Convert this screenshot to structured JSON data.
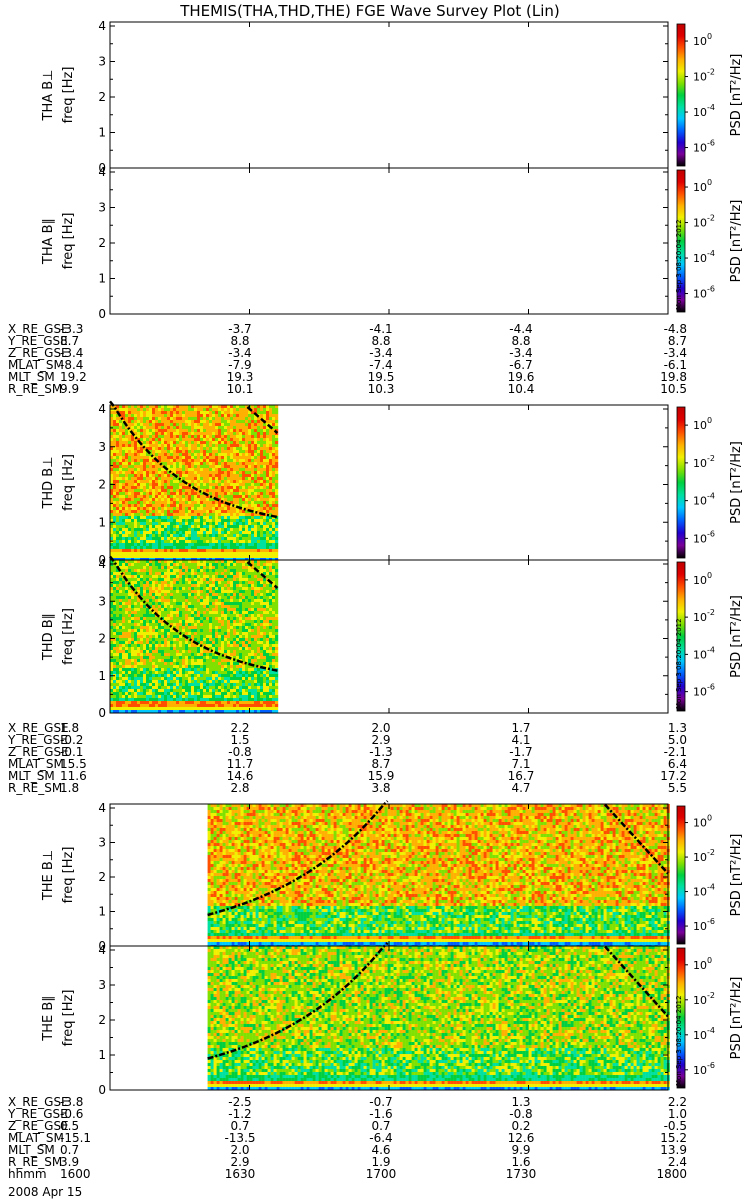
{
  "title": "THEMIS(THA,THD,THE) FGE Wave Survey Plot (Lin)",
  "date_label": "2008 Apr 15",
  "ylabel_unit": "freq [Hz]",
  "yticks": [
    "0",
    "1",
    "2",
    "3",
    "4"
  ],
  "colorbar": {
    "label": "PSD [nT²/Hz]",
    "ticks": [
      {
        "mant": "10",
        "exp": "0"
      },
      {
        "mant": "10",
        "exp": "-2"
      },
      {
        "mant": "10",
        "exp": "-4"
      },
      {
        "mant": "10",
        "exp": "-6"
      }
    ],
    "stamp": "Mon Sep  3 08:20:04 2012",
    "colors": [
      "#000000",
      "#7a0099",
      "#2000d0",
      "#0060ff",
      "#00c8ff",
      "#00e0a0",
      "#00d040",
      "#80e000",
      "#f0f000",
      "#ffb000",
      "#ff5000",
      "#e00000",
      "#c00000"
    ]
  },
  "chart_data": {
    "type": "heatmap",
    "time_range": [
      "1600",
      "1800"
    ],
    "ylim": [
      0,
      4
    ],
    "panels": [
      {
        "probe": "THA",
        "component": "B⊥",
        "ylabel": "THA B⊥",
        "data_coverage": "none",
        "colorbar_stamp": false
      },
      {
        "probe": "THA",
        "component": "B∥",
        "ylabel": "THA B∥",
        "data_coverage": "none",
        "colorbar_stamp": true
      },
      {
        "probe": "THD",
        "component": "B⊥",
        "ylabel": "THD B⊥",
        "data_coverage": [
          "1600",
          "1636"
        ],
        "colorbar_stamp": false
      },
      {
        "probe": "THD",
        "component": "B∥",
        "ylabel": "THD B∥",
        "data_coverage": [
          "1600",
          "1636"
        ],
        "colorbar_stamp": true
      },
      {
        "probe": "THE",
        "component": "B⊥",
        "ylabel": "THE B⊥",
        "data_coverage": [
          "1621",
          "1800"
        ],
        "colorbar_stamp": false
      },
      {
        "probe": "THE",
        "component": "B∥",
        "ylabel": "THE B∥",
        "data_coverage": [
          "1621",
          "1800"
        ],
        "colorbar_stamp": true
      }
    ],
    "ephemeris": [
      {
        "probe": "THA",
        "rows": [
          {
            "label": "X_RE_GSE",
            "values": [
              "-3.3",
              "-3.7",
              "-4.1",
              "-4.4",
              "-4.8"
            ]
          },
          {
            "label": "Y_RE_GSE",
            "values": [
              "8.7",
              "8.8",
              "8.8",
              "8.8",
              "8.7"
            ]
          },
          {
            "label": "Z_RE_GSE",
            "values": [
              "-3.4",
              "-3.4",
              "-3.4",
              "-3.4",
              "-3.4"
            ]
          },
          {
            "label": "MLAT_SM",
            "values": [
              "-8.4",
              "-7.9",
              "-7.4",
              "-6.7",
              "-6.1"
            ]
          },
          {
            "label": "MLT_SM",
            "values": [
              "19.2",
              "19.3",
              "19.5",
              "19.6",
              "19.8"
            ]
          },
          {
            "label": "R_RE_SM",
            "values": [
              "9.9",
              "10.1",
              "10.3",
              "10.4",
              "10.5"
            ]
          }
        ]
      },
      {
        "probe": "THD",
        "rows": [
          {
            "label": "X_RE_GSE",
            "values": [
              "1.8",
              "2.2",
              "2.0",
              "1.7",
              "1.3"
            ]
          },
          {
            "label": "Y_RE_GSE",
            "values": [
              "-0.2",
              "1.5",
              "2.9",
              "4.1",
              "5.0"
            ]
          },
          {
            "label": "Z_RE_GSE",
            "values": [
              "-0.1",
              "-0.8",
              "-1.3",
              "-1.7",
              "-2.1"
            ]
          },
          {
            "label": "MLAT_SM",
            "values": [
              "15.5",
              "11.7",
              "8.7",
              "7.1",
              "6.4"
            ]
          },
          {
            "label": "MLT_SM",
            "values": [
              "11.6",
              "14.6",
              "15.9",
              "16.7",
              "17.2"
            ]
          },
          {
            "label": "R_RE_SM",
            "values": [
              "1.8",
              "2.8",
              "3.8",
              "4.7",
              "5.5"
            ]
          }
        ]
      },
      {
        "probe": "THE",
        "rows": [
          {
            "label": "X_RE_GSE",
            "values": [
              "-3.8",
              "-2.5",
              "-0.7",
              "1.3",
              "2.2"
            ]
          },
          {
            "label": "Y_RE_GSE",
            "values": [
              "-0.6",
              "-1.2",
              "-1.6",
              "-0.8",
              "1.0"
            ]
          },
          {
            "label": "Z_RE_GSE",
            "values": [
              "0.5",
              "0.7",
              "0.7",
              "0.2",
              "-0.5"
            ]
          },
          {
            "label": "MLAT_SM",
            "values": [
              "-15.1",
              "-13.5",
              "-6.4",
              "12.6",
              "15.2"
            ]
          },
          {
            "label": "MLT_SM",
            "values": [
              "0.7",
              "2.0",
              "4.6",
              "9.9",
              "13.9"
            ]
          },
          {
            "label": "R_RE_SM",
            "values": [
              "3.9",
              "2.9",
              "1.9",
              "1.6",
              "2.4"
            ]
          },
          {
            "label": "hhmm",
            "values": [
              "1600",
              "1630",
              "1700",
              "1730",
              "1800"
            ]
          }
        ]
      }
    ]
  }
}
